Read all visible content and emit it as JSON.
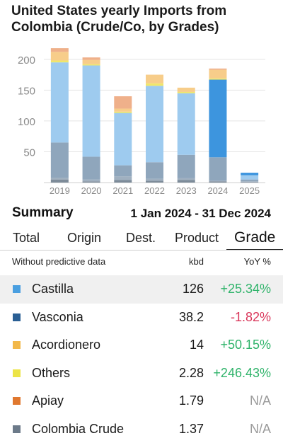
{
  "header": {
    "title": "United States yearly Imports from Colombia (Crude/Co, by Grades)"
  },
  "summary": {
    "label": "Summary",
    "range": "1 Jan 2024 - 31 Dec 2024"
  },
  "tabs": [
    {
      "label": "Total",
      "active": false
    },
    {
      "label": "Origin",
      "active": false
    },
    {
      "label": "Dest.",
      "active": false
    },
    {
      "label": "Product",
      "active": false
    },
    {
      "label": "Grade",
      "active": true
    }
  ],
  "table": {
    "header": {
      "caption": "Without predictive data",
      "unit": "kbd",
      "change": "YoY %"
    },
    "rows": [
      {
        "name": "Castilla",
        "value": "126",
        "yoy": "+25.34%",
        "trend": "pos",
        "color": "#4a9fe0",
        "highlight": true
      },
      {
        "name": "Vasconia",
        "value": "38.2",
        "yoy": "-1.82%",
        "trend": "neg",
        "color": "#2a5f94",
        "highlight": false
      },
      {
        "name": "Acordionero",
        "value": "14",
        "yoy": "+50.15%",
        "trend": "pos",
        "color": "#f2b84a",
        "highlight": false
      },
      {
        "name": "Others",
        "value": "2.28",
        "yoy": "+246.43%",
        "trend": "pos",
        "color": "#ece447",
        "highlight": false
      },
      {
        "name": "Apiay",
        "value": "1.79",
        "yoy": "N/A",
        "trend": "na",
        "color": "#e0782f",
        "highlight": false
      },
      {
        "name": "Colombia Crude",
        "value": "1.37",
        "yoy": "N/A",
        "trend": "na",
        "color": "#6c7a89",
        "highlight": false
      }
    ]
  },
  "chart_data": {
    "type": "bar",
    "stacked": true,
    "categories": [
      "2019",
      "2020",
      "2021",
      "2022",
      "2023",
      "2024",
      "2025"
    ],
    "ylim": [
      0,
      225
    ],
    "yticks": [
      50,
      100,
      150,
      200
    ],
    "grid": true,
    "series": [
      {
        "color": "#7d8b99",
        "values": [
          5,
          2,
          4,
          3,
          4,
          2,
          1
        ]
      },
      {
        "color": "#a0b0c0",
        "values": [
          3,
          3,
          6,
          3,
          3,
          1,
          1
        ]
      },
      {
        "color": "#8fa6bc",
        "values": [
          57,
          37,
          18,
          27,
          38,
          38,
          3
        ]
      },
      {
        "color": "#9ecbef",
        "values": [
          130,
          148,
          85,
          124,
          100,
          0,
          7
        ]
      },
      {
        "color": "#3d95de",
        "values": [
          0,
          0,
          0,
          0,
          0,
          126,
          4
        ]
      },
      {
        "color": "#f0e76a",
        "values": [
          3,
          2,
          2,
          4,
          2,
          2,
          0
        ]
      },
      {
        "color": "#f7cd8a",
        "values": [
          14,
          7,
          5,
          14,
          7,
          14,
          0
        ]
      },
      {
        "color": "#efb08a",
        "values": [
          6,
          4,
          20,
          0,
          0,
          2,
          0
        ]
      }
    ]
  }
}
